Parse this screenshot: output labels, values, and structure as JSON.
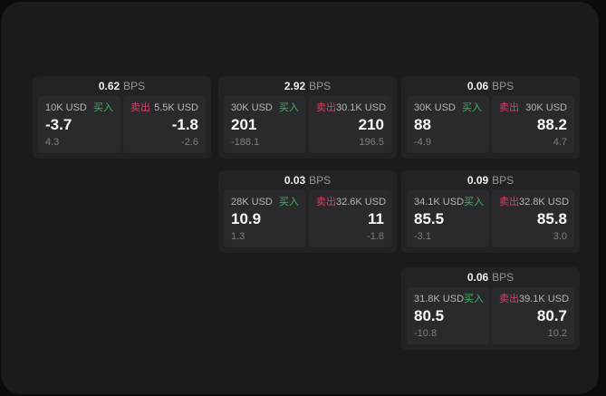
{
  "colors": {
    "backdrop": "#0b0b0b",
    "panel_bg": "#1b1b1d",
    "card_bg": "#232325",
    "tile_bg": "#2a2a2c",
    "buy_accent": "#3cb75f",
    "sell_accent": "#d94060",
    "main_text": "#fafafa",
    "muted_text": "#7f7f84"
  },
  "cards": [
    {
      "bps": "0.62",
      "bps_unit": "BPS",
      "buy": {
        "amount": "10K USD",
        "side_label": "买入",
        "value": "-3.7",
        "sub": "4.3"
      },
      "sell": {
        "amount": "5.5K USD",
        "side_label": "卖出",
        "value": "-1.8",
        "sub": "-2.6"
      }
    },
    {
      "bps": "2.92",
      "bps_unit": "BPS",
      "buy": {
        "amount": "30K USD",
        "side_label": "买入",
        "value": "201",
        "sub": "-188.1"
      },
      "sell": {
        "amount": "30.1K USD",
        "side_label": "卖出",
        "value": "210",
        "sub": "196.5"
      }
    },
    {
      "bps": "0.06",
      "bps_unit": "BPS",
      "buy": {
        "amount": "30K USD",
        "side_label": "买入",
        "value": "88",
        "sub": "-4.9"
      },
      "sell": {
        "amount": "30K USD",
        "side_label": "卖出",
        "value": "88.2",
        "sub": "4.7"
      }
    },
    {
      "bps": "0.03",
      "bps_unit": "BPS",
      "buy": {
        "amount": "28K USD",
        "side_label": "买入",
        "value": "10.9",
        "sub": "1.3"
      },
      "sell": {
        "amount": "32.6K USD",
        "side_label": "卖出",
        "value": "11",
        "sub": "-1.8"
      }
    },
    {
      "bps": "0.09",
      "bps_unit": "BPS",
      "buy": {
        "amount": "34.1K USD",
        "side_label": "买入",
        "value": "85.5",
        "sub": "-3.1"
      },
      "sell": {
        "amount": "32.8K USD",
        "side_label": "卖出",
        "value": "85.8",
        "sub": "3.0"
      }
    },
    {
      "bps": "0.06",
      "bps_unit": "BPS",
      "buy": {
        "amount": "31.8K USD",
        "side_label": "买入",
        "value": "80.5",
        "sub": "-10.8"
      },
      "sell": {
        "amount": "39.1K USD",
        "side_label": "卖出",
        "value": "80.7",
        "sub": "10.2"
      }
    }
  ]
}
